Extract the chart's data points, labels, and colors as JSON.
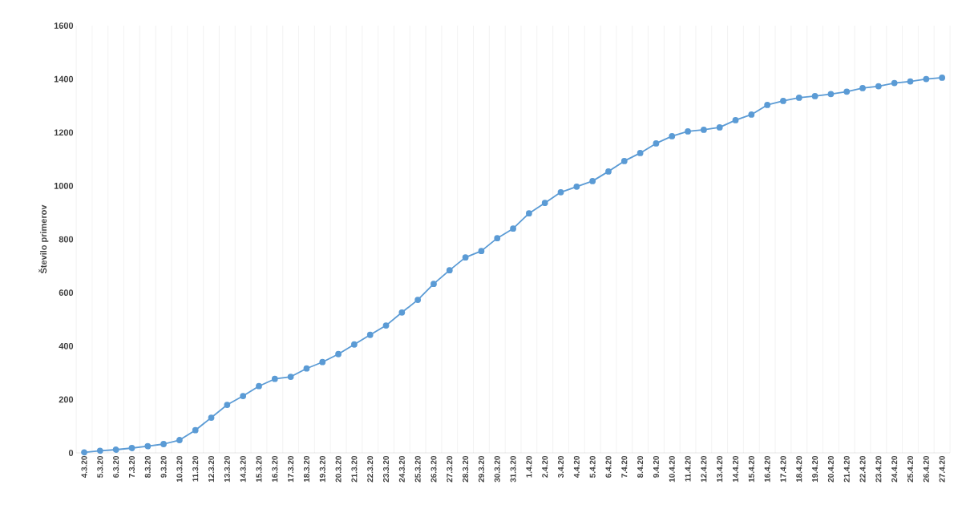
{
  "chart_data": {
    "type": "line",
    "ylabel": "Število primerov",
    "categories": [
      "4.3.20",
      "5.3.20",
      "6.3.20",
      "7.3.20",
      "8.3.20",
      "9.3.20",
      "10.3.20",
      "11.3.20",
      "12.3.20",
      "13.3.20",
      "14.3.20",
      "15.3.20",
      "16.3.20",
      "17.3.20",
      "18.3.20",
      "19.3.20",
      "20.3.20",
      "21.3.20",
      "22.3.20",
      "23.3.20",
      "24.3.20",
      "25.3.20",
      "26.3.20",
      "27.3.20",
      "28.3.20",
      "29.3.20",
      "30.3.20",
      "31.3.20",
      "1.4.20",
      "2.4.20",
      "3.4.20",
      "4.4.20",
      "5.4.20",
      "6.4.20",
      "7.4.20",
      "8.4.20",
      "9.4.20",
      "10.4.20",
      "11.4.20",
      "12.4.20",
      "13.4.20",
      "14.4.20",
      "15.4.20",
      "16.4.20",
      "17.4.20",
      "18.4.20",
      "19.4.20",
      "20.4.20",
      "21.4.20",
      "22.4.20",
      "23.4.20",
      "24.4.20",
      "25.4.20",
      "26.4.20",
      "27.4.20"
    ],
    "values": [
      2,
      8,
      12,
      18,
      25,
      33,
      48,
      85,
      132,
      180,
      213,
      250,
      277,
      285,
      316,
      340,
      370,
      406,
      442,
      477,
      526,
      573,
      633,
      684,
      732,
      756,
      804,
      840,
      897,
      936,
      976,
      997,
      1018,
      1054,
      1093,
      1123,
      1159,
      1186,
      1204,
      1210,
      1219,
      1246,
      1267,
      1303,
      1318,
      1330,
      1336,
      1344,
      1353,
      1366,
      1373,
      1385,
      1391,
      1400,
      1405
    ],
    "color": "#5b9bd5",
    "marker": "circle",
    "line_style": "solid",
    "grid": "x",
    "ylim": [
      0,
      1600
    ],
    "yticks": [
      0,
      200,
      400,
      600,
      800,
      1000,
      1200,
      1400,
      1600
    ]
  }
}
